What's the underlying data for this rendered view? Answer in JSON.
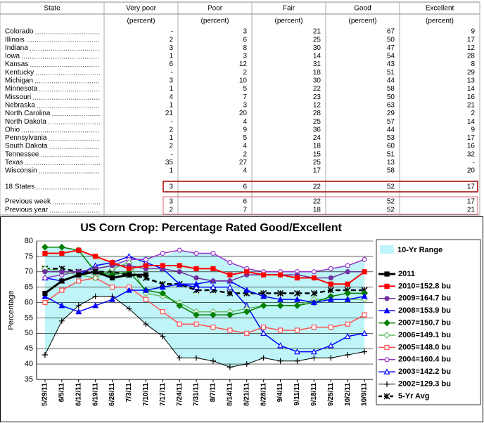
{
  "table": {
    "columns": [
      "State",
      "Very poor",
      "Poor",
      "Fair",
      "Good",
      "Excellent"
    ],
    "units": [
      "(percent)",
      "(percent)",
      "(percent)",
      "(percent)",
      "(percent)"
    ],
    "rows": [
      [
        "Colorado",
        "-",
        "3",
        "21",
        "67",
        "9"
      ],
      [
        "Illinois",
        "2",
        "6",
        "25",
        "50",
        "17"
      ],
      [
        "Indiana",
        "3",
        "8",
        "30",
        "47",
        "12"
      ],
      [
        "Iowa",
        "1",
        "3",
        "14",
        "54",
        "28"
      ],
      [
        "Kansas",
        "6",
        "12",
        "31",
        "43",
        "8"
      ],
      [
        "Kentucky",
        "-",
        "2",
        "18",
        "51",
        "29"
      ],
      [
        "Michigan",
        "3",
        "10",
        "30",
        "44",
        "13"
      ],
      [
        "Minnesota",
        "1",
        "5",
        "22",
        "58",
        "14"
      ],
      [
        "Missouri",
        "4",
        "7",
        "23",
        "50",
        "16"
      ],
      [
        "Nebraska",
        "1",
        "3",
        "12",
        "63",
        "21"
      ],
      [
        "North Carolina",
        "21",
        "20",
        "28",
        "29",
        "2"
      ],
      [
        "North Dakota",
        "-",
        "4",
        "25",
        "57",
        "14"
      ],
      [
        "Ohio",
        "2",
        "9",
        "36",
        "44",
        "9"
      ],
      [
        "Pennsylvania",
        "1",
        "5",
        "24",
        "53",
        "17"
      ],
      [
        "South Dakota",
        "2",
        "4",
        "18",
        "60",
        "16"
      ],
      [
        "Tennessee",
        "-",
        "2",
        "15",
        "51",
        "32"
      ],
      [
        "Texas",
        "35",
        "27",
        "25",
        "13",
        "-"
      ],
      [
        "Wisconsin",
        "1",
        "4",
        "17",
        "58",
        "20"
      ]
    ],
    "total": [
      [
        "18 States",
        "3",
        "6",
        "22",
        "52",
        "17"
      ]
    ],
    "previous": [
      [
        "Previous week",
        "3",
        "6",
        "22",
        "52",
        "17"
      ],
      [
        "Previous year",
        "2",
        "7",
        "18",
        "52",
        "21"
      ]
    ]
  },
  "chart_data": {
    "type": "line",
    "title": "US Corn Crop: Percentage Rated Good/Excellent",
    "y_label": "Percentage",
    "categories": [
      "5/29/11",
      "6/5/11",
      "6/12/11",
      "6/19/11",
      "6/26/11",
      "7/3/11",
      "7/10/11",
      "7/17/11",
      "7/24/11",
      "7/31/11",
      "8/7/11",
      "8/14/11",
      "8/21/11",
      "8/28/11",
      "9/4/11",
      "9/11/11",
      "9/18/11",
      "9/25/11",
      "10/2/11",
      "10/9/11"
    ],
    "ylim": [
      35,
      80
    ],
    "yticks": [
      35,
      40,
      45,
      50,
      55,
      60,
      65,
      70,
      75,
      80
    ],
    "grid": true,
    "range": {
      "name": "10-Yr Range",
      "color": "#bff5f8",
      "high": [
        78,
        78,
        77,
        75,
        73,
        74,
        75,
        75,
        77,
        76,
        76,
        73,
        71,
        70,
        70,
        70,
        70,
        71,
        72,
        74
      ],
      "low": [
        43,
        54,
        59,
        62,
        62,
        58,
        53,
        49,
        42,
        42,
        41,
        39,
        40,
        42,
        41,
        41,
        42,
        42,
        43,
        44
      ]
    },
    "series": [
      {
        "name": "2011",
        "color": "#000000",
        "marker": "square",
        "filled": true,
        "width": 3,
        "values": [
          63,
          67,
          69,
          70,
          68,
          69,
          69,
          null,
          null,
          null,
          null,
          null,
          null,
          null,
          null,
          null,
          null,
          null,
          null,
          null
        ]
      },
      {
        "name": "2010=152.8 bu",
        "color": "#ff0000",
        "marker": "square",
        "filled": true,
        "width": 2,
        "values": [
          76,
          76,
          77,
          75,
          73,
          71,
          72,
          72,
          72,
          71,
          71,
          69,
          70,
          69,
          69,
          68,
          68,
          66,
          66,
          70
        ]
      },
      {
        "name": "2009=164.7 bu",
        "color": "#7030a0",
        "marker": "circle",
        "filled": true,
        "width": 1.5,
        "values": [
          70,
          70,
          70,
          71,
          72,
          72,
          71,
          71,
          70,
          68,
          67,
          67,
          69,
          69,
          69,
          69,
          68,
          68,
          70,
          70
        ]
      },
      {
        "name": "2008=153.9 bu",
        "color": "#0000ff",
        "marker": "triangle",
        "filled": true,
        "width": 1.5,
        "values": [
          62,
          59,
          57,
          59,
          61,
          64,
          64,
          65,
          66,
          66,
          67,
          67,
          64,
          62,
          61,
          61,
          60,
          61,
          61,
          62
        ]
      },
      {
        "name": "2007=150.7 bu",
        "color": "#008000",
        "marker": "diamond",
        "filled": true,
        "width": 1.5,
        "values": [
          78,
          78,
          77,
          70,
          69,
          70,
          64,
          63,
          59,
          56,
          56,
          56,
          57,
          59,
          59,
          59,
          60,
          62,
          63,
          63
        ]
      },
      {
        "name": "2006=149.1 bu",
        "color": "#66bb66",
        "marker": "diamond",
        "filled": false,
        "width": 1.5,
        "values": [
          71,
          70,
          69,
          68,
          71,
          73,
          63,
          62,
          60,
          57,
          57,
          57,
          58,
          59,
          59,
          59,
          61,
          61,
          61,
          61
        ]
      },
      {
        "name": "2005=148.0 bu",
        "color": "#ff5050",
        "marker": "square",
        "filled": false,
        "width": 1.5,
        "values": [
          60,
          64,
          67,
          68,
          65,
          65,
          61,
          57,
          53,
          53,
          52,
          51,
          50,
          52,
          51,
          51,
          52,
          52,
          53,
          56
        ]
      },
      {
        "name": "2004=160.4 bu",
        "color": "#9933cc",
        "marker": "circle",
        "filled": false,
        "width": 1.5,
        "values": [
          68,
          69,
          70,
          71,
          72,
          74,
          74,
          76,
          77,
          76,
          76,
          73,
          71,
          70,
          70,
          70,
          70,
          71,
          72,
          74
        ]
      },
      {
        "name": "2003=142.2 bu",
        "color": "#0000ff",
        "marker": "triangle",
        "filled": false,
        "width": 1.5,
        "values": [
          68,
          67,
          69,
          72,
          73,
          75,
          73,
          71,
          66,
          65,
          65,
          65,
          59,
          50,
          46,
          44,
          44,
          46,
          49,
          50
        ]
      },
      {
        "name": "2002=129.3 bu",
        "color": "#000000",
        "marker": "plus",
        "filled": false,
        "width": 1,
        "values": [
          43,
          54,
          59,
          62,
          62,
          58,
          53,
          49,
          42,
          42,
          41,
          39,
          40,
          42,
          41,
          41,
          42,
          42,
          43,
          44
        ]
      },
      {
        "name": "5-Yr Avg",
        "color": "#000000",
        "marker": "asterisk",
        "filled": false,
        "width": 2.5,
        "dash": true,
        "values": [
          71,
          71,
          70,
          70,
          70,
          69,
          68,
          66,
          66,
          64,
          64,
          63,
          63,
          63,
          63,
          63,
          63,
          64,
          64,
          64
        ]
      }
    ]
  }
}
